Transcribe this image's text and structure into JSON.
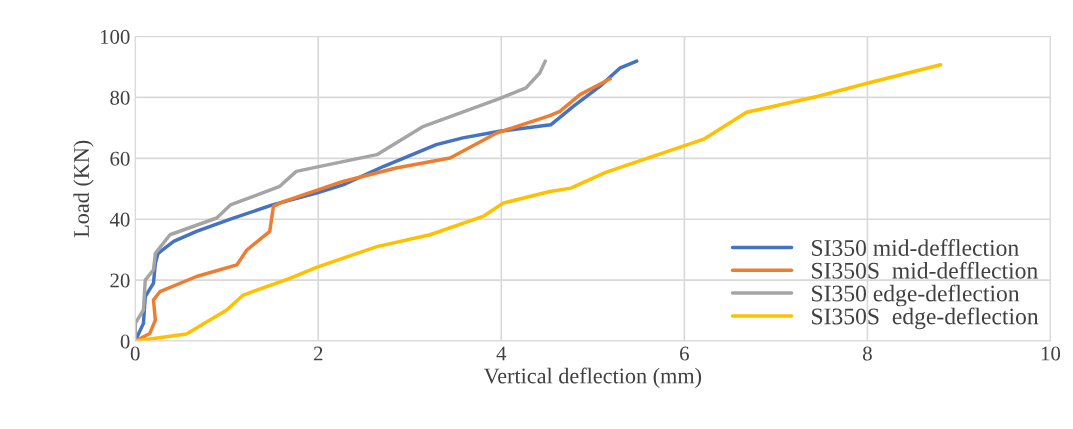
{
  "chart_data": {
    "type": "line",
    "xlabel": "Vertical deflection (mm)",
    "ylabel": "Load (KN)",
    "xlim": [
      0,
      10
    ],
    "xticks": [
      0,
      2,
      4,
      6,
      8,
      10
    ],
    "ylim": [
      0,
      100
    ],
    "yticks": [
      0,
      20,
      40,
      60,
      80,
      100
    ],
    "grid": true,
    "legend": "bottom right",
    "marker": "none",
    "line_style": "solid",
    "series": [
      {
        "name": "SI350 mid-defflection",
        "color": "#4472c4",
        "x": [
          0,
          0.09,
          0.11,
          0.2,
          0.22,
          0.25,
          0.42,
          0.67,
          1.04,
          1.5,
          1.98,
          2.27,
          2.71,
          3.29,
          3.58,
          3.98,
          4.54,
          4.79,
          5.08,
          5.3,
          5.48
        ],
        "values": [
          0,
          5.8,
          14.6,
          19,
          25.5,
          28.8,
          32.7,
          36,
          40,
          44.7,
          48.6,
          51.3,
          57.3,
          64.5,
          66.7,
          68.9,
          71,
          77.1,
          83.7,
          89.7,
          91.9
        ]
      },
      {
        "name": "SI350S  mid-defflection",
        "color": "#ed7d31",
        "x": [
          0,
          0.16,
          0.22,
          0.2,
          0.27,
          0.67,
          1.11,
          1.22,
          1.47,
          1.51,
          1.62,
          2.27,
          2.85,
          3.44,
          3.95,
          4.53,
          4.64,
          4.86,
          5.19
        ],
        "values": [
          0,
          2.5,
          6.9,
          13.5,
          16.2,
          21.2,
          25,
          29.9,
          36,
          44.2,
          45.8,
          52.4,
          56.8,
          60.1,
          68.3,
          74,
          75.4,
          80.9,
          86.1
        ]
      },
      {
        "name": "SI350 edge-deflection",
        "color": "#a5a5a5",
        "x": [
          0,
          0,
          0.09,
          0.11,
          0.2,
          0.22,
          0.38,
          0.89,
          1.04,
          1.58,
          1.76,
          1.98,
          2.64,
          3.15,
          3.95,
          4.27,
          4.42,
          4.48
        ],
        "values": [
          0,
          5.8,
          10.2,
          20,
          23.4,
          28.8,
          34.9,
          40.4,
          44.7,
          50.8,
          55.7,
          57.1,
          61.2,
          70.5,
          79.3,
          83.1,
          88,
          91.9
        ]
      },
      {
        "name": "SI350S  edge-deflection",
        "color": "#ffc000",
        "x": [
          0,
          0.56,
          1.0,
          1.18,
          1.69,
          1.98,
          2.64,
          3.22,
          3.8,
          4.02,
          4.53,
          4.76,
          5.14,
          6.22,
          6.68,
          7.45,
          8.03,
          8.8
        ],
        "values": [
          0,
          2.3,
          10.2,
          15.1,
          20.6,
          24.2,
          31,
          34.9,
          40.9,
          45.3,
          49.1,
          50.2,
          55.4,
          66.4,
          75.1,
          80.3,
          84.9,
          90.7
        ]
      }
    ]
  }
}
